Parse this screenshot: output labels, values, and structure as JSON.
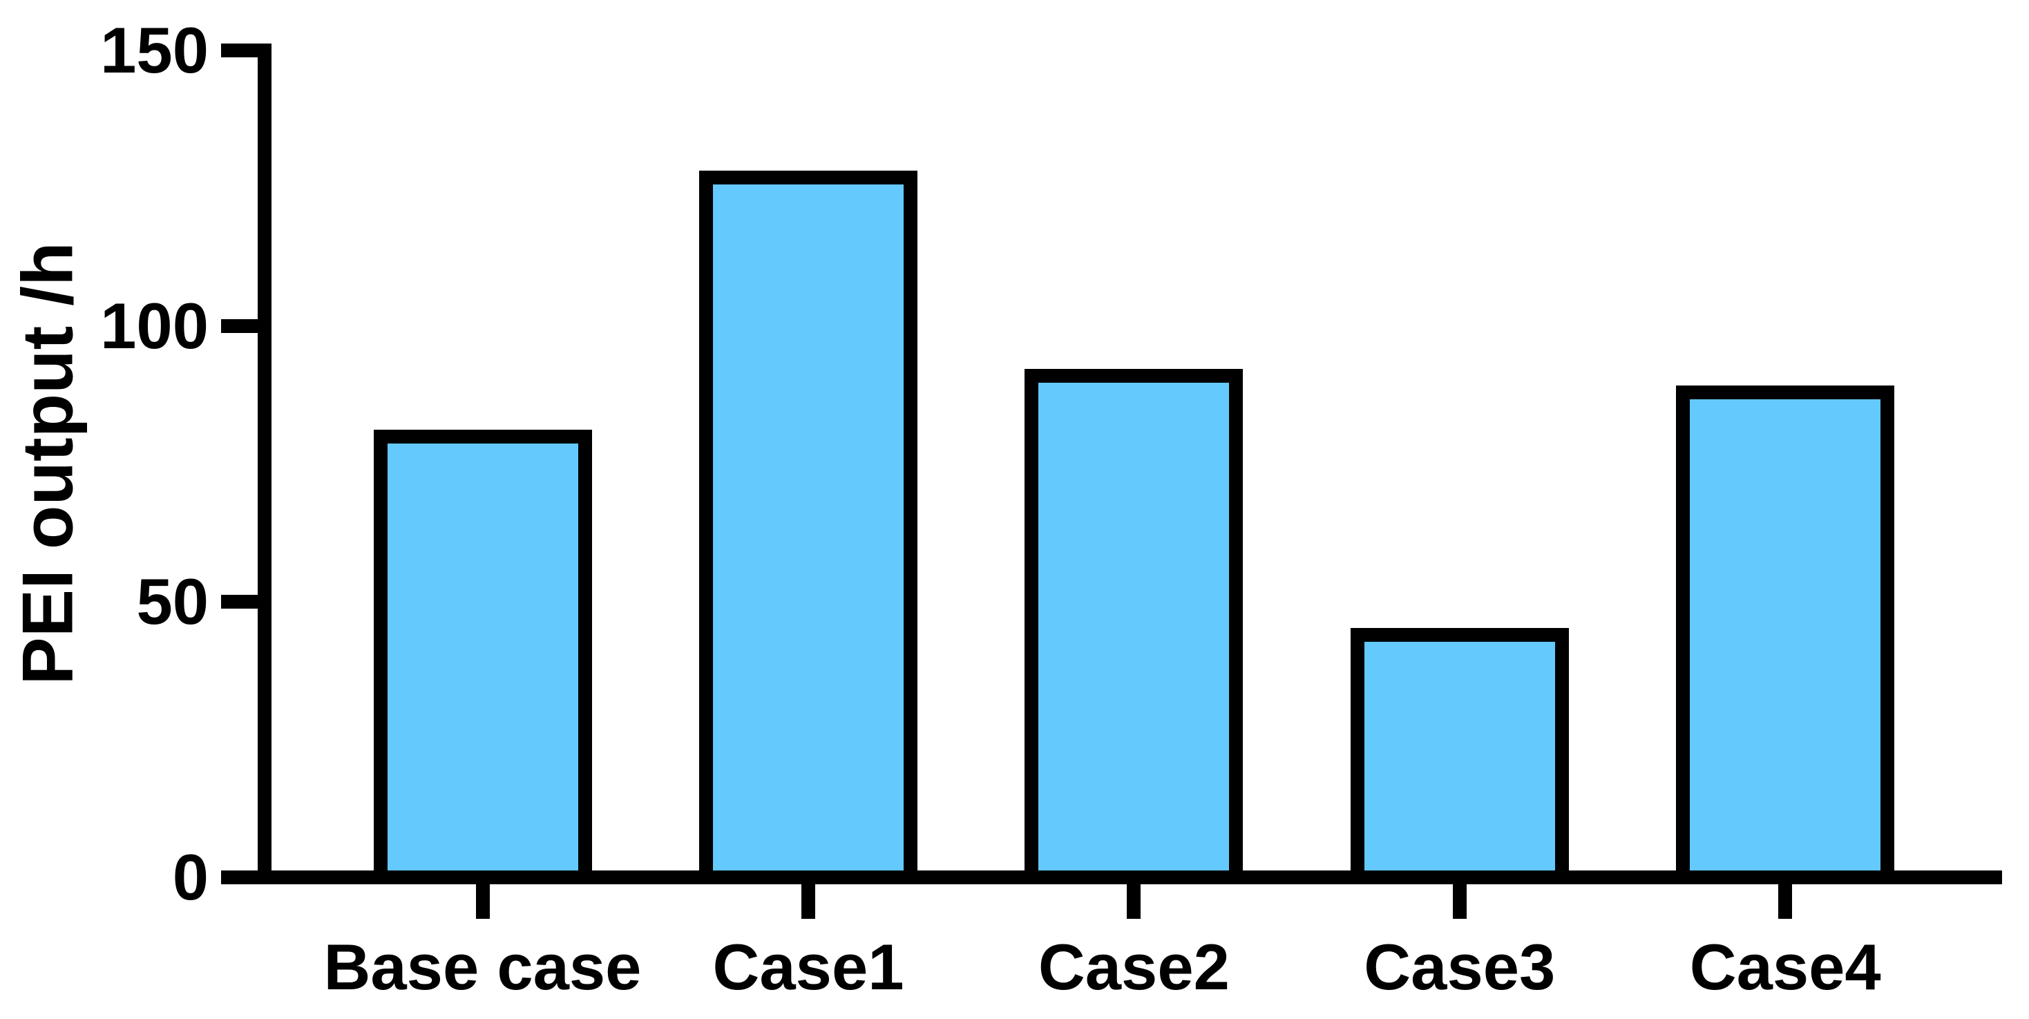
{
  "figure": {
    "background_color": "#ffffff",
    "text_color": "#000000"
  },
  "chart_data": {
    "type": "bar",
    "title": "",
    "xlabel": "",
    "ylabel": "PEI output /h",
    "categories": [
      "Base case",
      "Case1",
      "Case2",
      "Case3",
      "Case4"
    ],
    "values": [
      80,
      127,
      91,
      44,
      88
    ],
    "ylim": [
      0,
      150
    ],
    "yticks": [
      0,
      50,
      100,
      150
    ],
    "ytick_labels": [
      "0",
      "50",
      "100",
      "150"
    ],
    "grid": false,
    "legend_position": "none",
    "bar_fill_color": "#64C9FC",
    "bar_border_color": "#000000",
    "axis_color": "#000000"
  }
}
